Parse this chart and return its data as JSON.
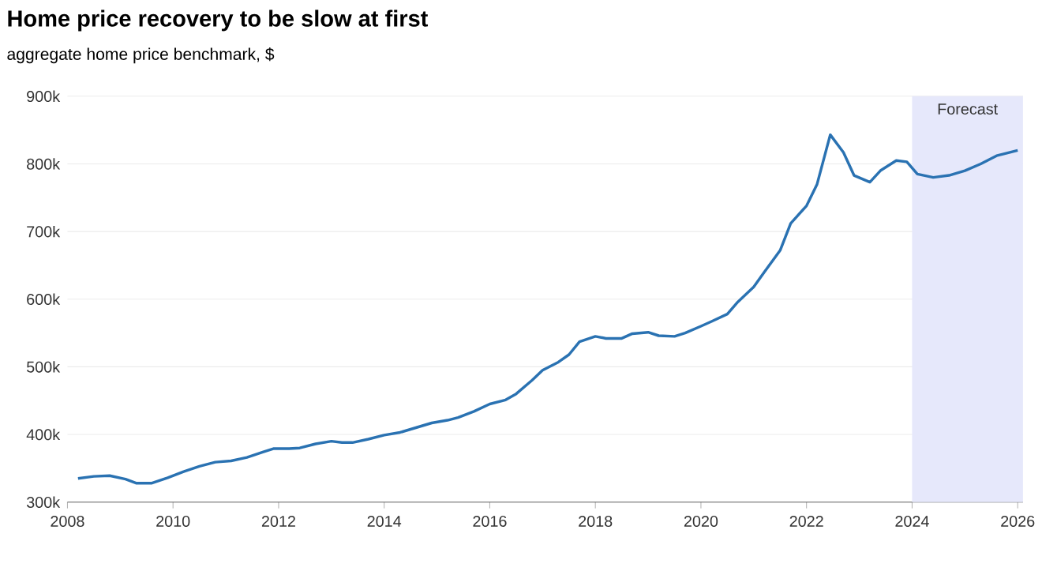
{
  "chart_data": {
    "type": "line",
    "title": "Home price recovery to be slow at first",
    "subtitle": "aggregate home price benchmark, $",
    "x": [
      2008.2,
      2008.5,
      2008.8,
      2009.1,
      2009.3,
      2009.6,
      2009.9,
      2010.2,
      2010.5,
      2010.8,
      2011.1,
      2011.4,
      2011.7,
      2011.9,
      2012.2,
      2012.4,
      2012.7,
      2013.0,
      2013.2,
      2013.4,
      2013.7,
      2014.0,
      2014.3,
      2014.6,
      2014.9,
      2015.2,
      2015.4,
      2015.7,
      2016.0,
      2016.3,
      2016.5,
      2016.8,
      2017.0,
      2017.3,
      2017.5,
      2017.7,
      2018.0,
      2018.2,
      2018.5,
      2018.7,
      2019.0,
      2019.2,
      2019.5,
      2019.7,
      2020.0,
      2020.2,
      2020.5,
      2020.7,
      2021.0,
      2021.2,
      2021.5,
      2021.7,
      2022.0,
      2022.2,
      2022.45,
      2022.7,
      2022.9,
      2023.2,
      2023.4,
      2023.7,
      2023.9,
      2024.1,
      2024.4,
      2024.7,
      2025.0,
      2025.3,
      2025.6,
      2026.0
    ],
    "series": [
      {
        "color": "#2a72b2",
        "values": [
          335000,
          338000,
          339000,
          334000,
          328000,
          328000,
          336000,
          345000,
          353000,
          359000,
          361000,
          366000,
          374000,
          379000,
          379000,
          380000,
          386000,
          390000,
          388000,
          388000,
          393000,
          399000,
          403000,
          410000,
          417000,
          421000,
          425000,
          434000,
          445000,
          451000,
          460000,
          480000,
          495000,
          507000,
          518000,
          537000,
          545000,
          542000,
          542000,
          549000,
          551000,
          546000,
          545000,
          550000,
          560000,
          567000,
          578000,
          596000,
          618000,
          640000,
          672000,
          712000,
          738000,
          770000,
          843000,
          817000,
          783000,
          773000,
          790000,
          805000,
          803000,
          785000,
          780000,
          783000,
          790000,
          800000,
          812000,
          820000
        ]
      }
    ],
    "xlim": [
      2008,
      2026.1
    ],
    "ylim": [
      300000,
      900000
    ],
    "xticks": [
      2008,
      2010,
      2012,
      2014,
      2016,
      2018,
      2020,
      2022,
      2024,
      2026
    ],
    "yticks": [
      {
        "value": 300000,
        "label": "300k"
      },
      {
        "value": 400000,
        "label": "400k"
      },
      {
        "value": 500000,
        "label": "500k"
      },
      {
        "value": 600000,
        "label": "600k"
      },
      {
        "value": 700000,
        "label": "700k"
      },
      {
        "value": 800000,
        "label": "800k"
      },
      {
        "value": 900000,
        "label": "900k"
      }
    ],
    "grid": "y",
    "bands": [
      {
        "axis": "x",
        "from": 2024,
        "to": 2026.1,
        "label": "Forecast",
        "color": "#e6e8fb"
      }
    ]
  }
}
